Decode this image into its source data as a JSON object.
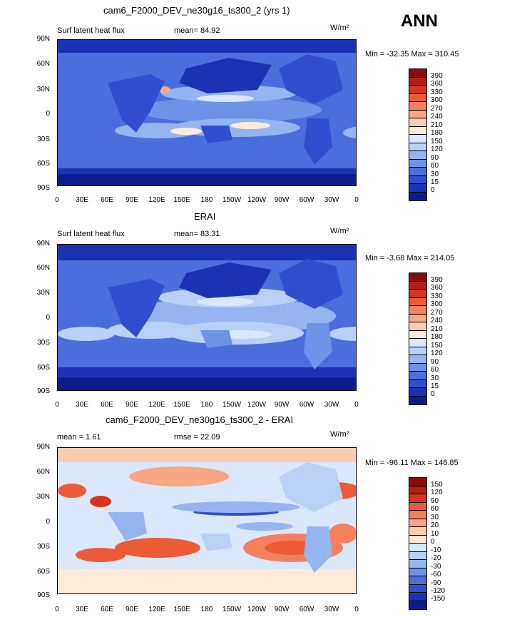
{
  "annual_label": "ANN",
  "panels": [
    {
      "title": "cam6_F2000_DEV_ne30g16_ts300_2 (yrs 1)",
      "left_text": "Surf latent heat flux",
      "mid_text": "mean=   84.92",
      "units": "W/m²",
      "minmax": "Min = -32.35  Max = 310.45"
    },
    {
      "title": "ERAI",
      "left_text": "Surf latent heat flux",
      "mid_text": "mean=   83.31",
      "units": "W/m²",
      "minmax": "Min =  -3.68  Max = 214.05"
    },
    {
      "title": "cam6_F2000_DEV_ne30g16_ts300_2 - ERAI",
      "left_text": "mean =     1.61",
      "mid_text": "rmse =    22.09",
      "units": "W/m²",
      "minmax": "Min = -96.11  Max = 146.85"
    }
  ],
  "lat_labels": [
    "90N",
    "60N",
    "30N",
    "0",
    "30S",
    "60S",
    "90S"
  ],
  "lon_labels": [
    "0",
    "30E",
    "60E",
    "90E",
    "120E",
    "150E",
    "180",
    "150W",
    "120W",
    "90W",
    "60W",
    "30W",
    "0"
  ],
  "colorbar_abs": {
    "labels": [
      "390",
      "360",
      "330",
      "300",
      "270",
      "240",
      "210",
      "180",
      "150",
      "120",
      "90",
      "60",
      "30",
      "15",
      "0"
    ],
    "colors": [
      "#8c0a0a",
      "#b21e12",
      "#d6341c",
      "#ec5a38",
      "#f5805d",
      "#f9a685",
      "#fccbb0",
      "#feead9",
      "#dbe8fb",
      "#b9d1f6",
      "#94b5ef",
      "#6c93e6",
      "#4a6fdc",
      "#2f4fd0",
      "#1a33b5",
      "#0b1d8c"
    ]
  },
  "colorbar_diff": {
    "labels": [
      "150",
      "120",
      "90",
      "60",
      "30",
      "20",
      "10",
      "0",
      "-10",
      "-20",
      "-30",
      "-60",
      "-90",
      "-120",
      "-150"
    ],
    "colors": [
      "#8c0a0a",
      "#b21e12",
      "#d6341c",
      "#ec5a38",
      "#f5805d",
      "#f9a685",
      "#fccbb0",
      "#feead9",
      "#dbe8fb",
      "#b9d1f6",
      "#94b5ef",
      "#6c93e6",
      "#4a6fdc",
      "#2f4fd0",
      "#1a33b5",
      "#0b1d8c"
    ]
  }
}
